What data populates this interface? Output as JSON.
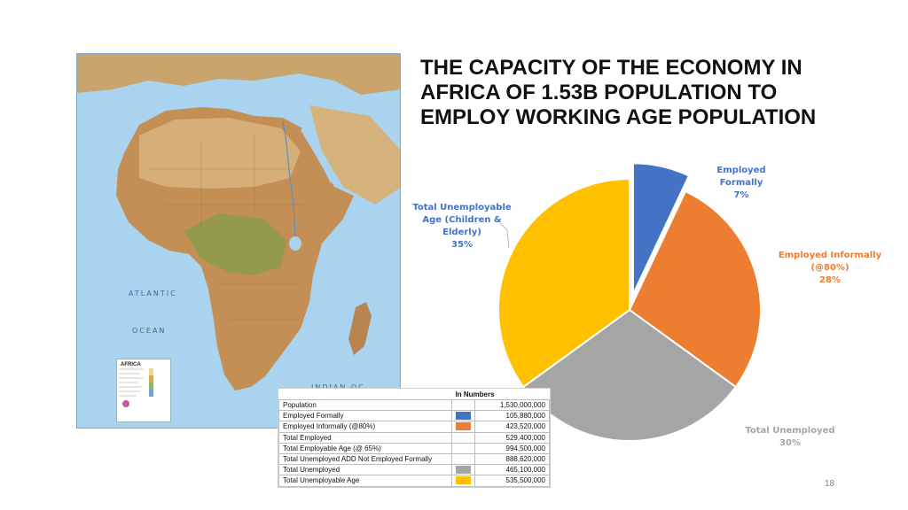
{
  "slide": {
    "title": "THE CAPACITY OF THE ECONOMY IN AFRICA OF 1.53B POPULATION TO EMPLOY WORKING AGE POPULATION",
    "page_number": "18"
  },
  "map": {
    "labels": {
      "atlantic": "ATLANTIC",
      "ocean": "OCEAN",
      "indian_ocean": "INDIAN OC",
      "inset_title": "AFRICA"
    },
    "colors": {
      "water": "#a9d3ee",
      "land": "#c79a62",
      "desert": "#d9b57f",
      "forest": "#7f9c4a"
    }
  },
  "chart_data": {
    "type": "pie",
    "slices": [
      {
        "label": "Employed Formally",
        "pct_label": "7%",
        "value": 7,
        "color": "#4472c4",
        "exploded": true
      },
      {
        "label": "Employed Informally (@80%)",
        "pct_label": "28%",
        "value": 28,
        "color": "#ed7d31",
        "exploded": false
      },
      {
        "label": "Total Unemployed",
        "pct_label": "30%",
        "value": 30,
        "color": "#a5a5a5",
        "exploded": false
      },
      {
        "label": "Total Unemployable Age (Children & Elderly)",
        "pct_label": "35%",
        "value": 35,
        "color": "#ffc000",
        "exploded": false
      }
    ]
  },
  "table": {
    "header": "In Numbers",
    "rows": [
      {
        "label": "Population",
        "value": "1,530,000,000",
        "swatch": ""
      },
      {
        "label": "Employed Formally",
        "value": "105,880,000",
        "swatch": "#4472c4"
      },
      {
        "label": "Employed Informally (@80%)",
        "value": "423,520,000",
        "swatch": "#ed7d31"
      },
      {
        "label": "Total Employed",
        "value": "529,400,000",
        "swatch": ""
      },
      {
        "label": "Total Employable Age (@ 65%)",
        "value": "994,500,000",
        "swatch": ""
      },
      {
        "label": "Total Unemployed ADD Not Employed Formally",
        "value": "888,620,000",
        "swatch": ""
      },
      {
        "label": "Total Unemployed",
        "value": "465,100,000",
        "swatch": "#a5a5a5"
      },
      {
        "label": "Total Unemployable Age",
        "value": "535,500,000",
        "swatch": "#ffc000"
      }
    ]
  }
}
